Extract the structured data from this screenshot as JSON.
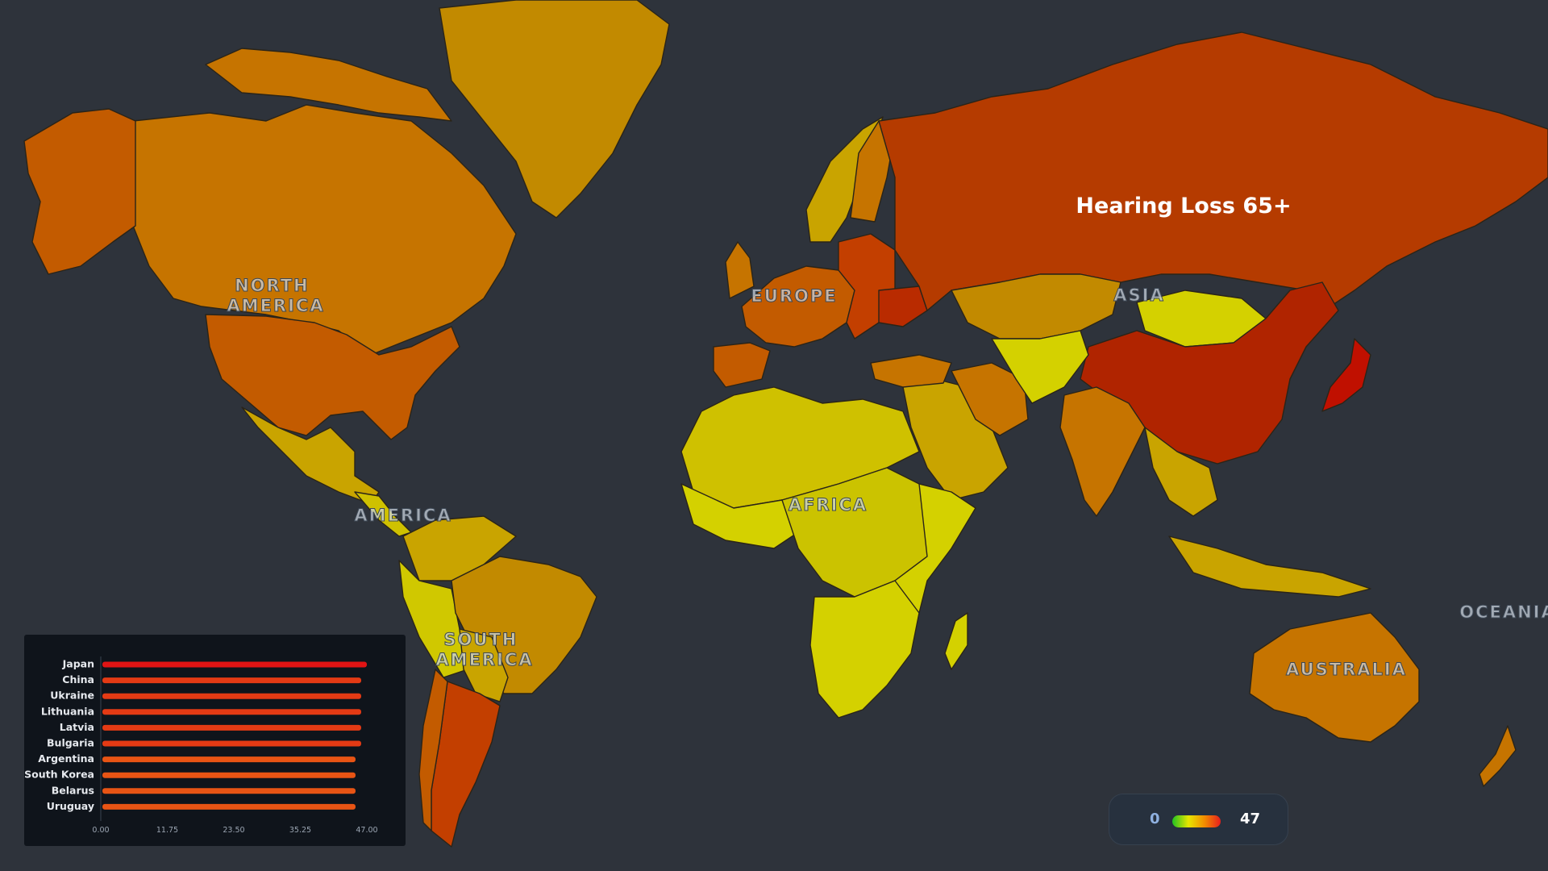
{
  "map": {
    "title": "Hearing Loss 65+",
    "continent_labels": {
      "north_america": [
        "NORTH",
        "AMERICA"
      ],
      "central_america": "AMERICA",
      "south_america": [
        "SOUTH",
        "AMERICA"
      ],
      "europe": "EUROPE",
      "africa": "AFRICA",
      "asia": "ASIA",
      "australia": "AUSTRALIA",
      "oceania": "OCEANIA"
    },
    "colors": {
      "background": "#2e333b",
      "scale_low": "#cdd400",
      "scale_mid": "#c48a00",
      "scale_high": "#c01000"
    }
  },
  "legend": {
    "min": "0",
    "max": "47",
    "gradient_colors": [
      "#22c322",
      "#e6e600",
      "#f28c00",
      "#e61e1e"
    ]
  },
  "chart_data": {
    "type": "bar",
    "orientation": "horizontal",
    "categories": [
      "Japan",
      "China",
      "Ukraine",
      "Lithuania",
      "Latvia",
      "Bulgaria",
      "Argentina",
      "South Korea",
      "Belarus",
      "Uruguay"
    ],
    "values": [
      47.0,
      46.0,
      46.0,
      46.0,
      46.0,
      46.0,
      45.0,
      45.0,
      45.0,
      45.0
    ],
    "xlim": [
      0,
      47
    ],
    "xticks": [
      "0.00",
      "11.75",
      "23.50",
      "35.25",
      "47.00"
    ],
    "bar_colors": [
      "#e01414",
      "#e43a14",
      "#e43a14",
      "#e43a14",
      "#e43a14",
      "#e43a14",
      "#e85414",
      "#e85414",
      "#e85414",
      "#e85414"
    ],
    "title": "",
    "xlabel": "",
    "ylabel": ""
  }
}
